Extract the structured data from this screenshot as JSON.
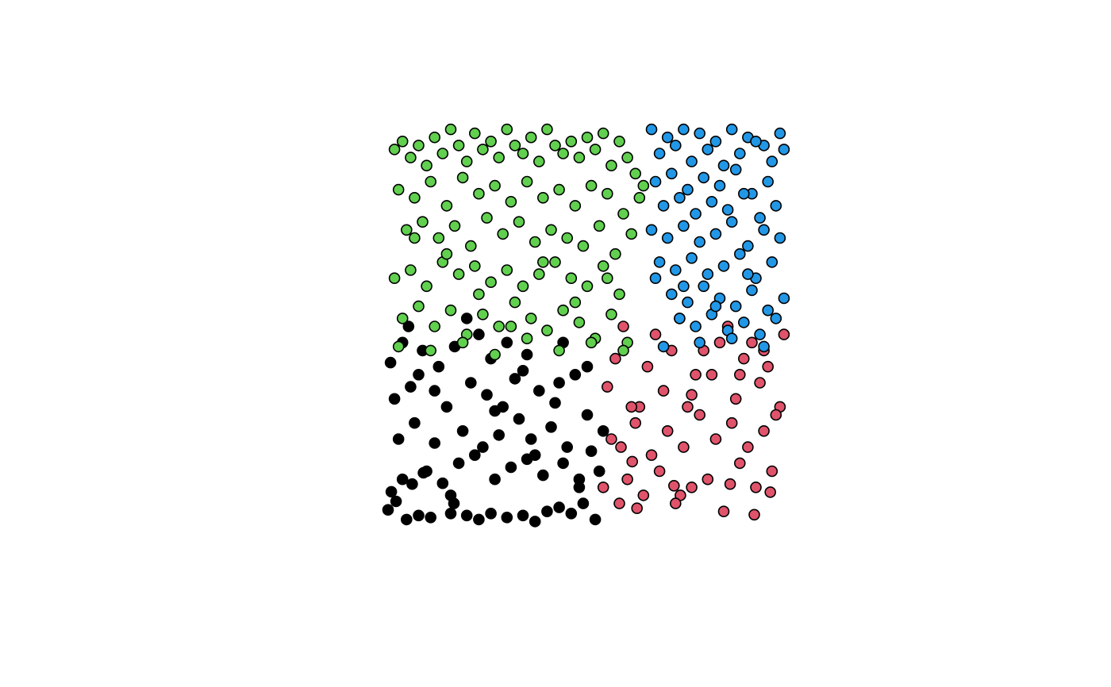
{
  "chart_data": {
    "type": "scatter",
    "xlim": [
      0,
      1
    ],
    "ylim": [
      0,
      1
    ],
    "grid": false,
    "axes_visible": false,
    "point_stroke": "#000000",
    "series": [
      {
        "color": "#000000",
        "x": [
          0.004,
          0.012,
          0.024,
          0.064,
          0.092,
          0.168,
          0.05,
          0.08,
          0.11,
          0.16,
          0.2,
          0.23,
          0.26,
          0.3,
          0.34,
          0.37,
          0.4,
          0.43,
          0.46,
          0.49,
          0.52,
          0.04,
          0.1,
          0.14,
          0.18,
          0.22,
          0.27,
          0.31,
          0.35,
          0.39,
          0.44,
          0.48,
          0.51,
          0.53,
          0.03,
          0.07,
          0.12,
          0.19,
          0.24,
          0.28,
          0.33,
          0.36,
          0.41,
          0.45,
          0.5,
          0.54,
          0.02,
          0.06,
          0.15,
          0.21,
          0.25,
          0.29,
          0.32,
          0.38,
          0.42,
          0.47,
          0.01,
          0.09,
          0.13,
          0.17,
          0.26,
          0.35,
          0.44,
          0.5,
          0.055,
          0.23,
          0.34,
          0.43,
          0.3,
          0.2,
          0.08,
          0.27,
          0.37,
          0.48,
          0.16,
          0.04,
          0.12
        ],
        "y": [
          0.044,
          0.089,
          0.065,
          0.108,
          0.136,
          0.06,
          0.02,
          0.03,
          0.025,
          0.035,
          0.03,
          0.02,
          0.035,
          0.025,
          0.03,
          0.015,
          0.04,
          0.05,
          0.035,
          0.06,
          0.02,
          0.12,
          0.14,
          0.11,
          0.16,
          0.18,
          0.12,
          0.15,
          0.17,
          0.13,
          0.16,
          0.1,
          0.19,
          0.14,
          0.22,
          0.26,
          0.21,
          0.24,
          0.2,
          0.23,
          0.27,
          0.22,
          0.25,
          0.2,
          0.28,
          0.24,
          0.32,
          0.35,
          0.3,
          0.36,
          0.33,
          0.3,
          0.37,
          0.34,
          0.31,
          0.38,
          0.41,
          0.44,
          0.4,
          0.45,
          0.42,
          0.43,
          0.46,
          0.4,
          0.5,
          0.48,
          0.39,
          0.36,
          0.46,
          0.52,
          0.38,
          0.29,
          0.18,
          0.12,
          0.08,
          0.46,
          0.34
        ]
      },
      {
        "color": "#DF536B",
        "x": [
          0.584,
          0.612,
          0.716,
          0.732,
          0.856,
          0.916,
          0.956,
          0.624,
          0.54,
          0.58,
          0.6,
          0.64,
          0.68,
          0.72,
          0.76,
          0.8,
          0.84,
          0.88,
          0.92,
          0.96,
          0.56,
          0.62,
          0.66,
          0.7,
          0.74,
          0.78,
          0.82,
          0.86,
          0.9,
          0.94,
          0.98,
          0.55,
          0.63,
          0.69,
          0.75,
          0.81,
          0.87,
          0.93,
          0.97,
          0.57,
          0.65,
          0.71,
          0.77,
          0.83,
          0.89,
          0.95,
          0.59,
          0.67,
          0.73,
          0.79,
          0.85,
          0.91,
          0.99,
          0.61,
          0.76,
          0.88,
          0.94
        ],
        "y": [
          0.2,
          0.164,
          0.104,
          0.08,
          0.108,
          0.032,
          0.088,
          0.048,
          0.1,
          0.06,
          0.12,
          0.08,
          0.14,
          0.06,
          0.1,
          0.12,
          0.04,
          0.16,
          0.1,
          0.14,
          0.22,
          0.26,
          0.18,
          0.24,
          0.2,
          0.28,
          0.22,
          0.26,
          0.2,
          0.24,
          0.3,
          0.35,
          0.3,
          0.34,
          0.3,
          0.38,
          0.32,
          0.36,
          0.28,
          0.42,
          0.4,
          0.44,
          0.38,
          0.46,
          0.42,
          0.4,
          0.5,
          0.48,
          0.52,
          0.44,
          0.5,
          0.46,
          0.48,
          0.3,
          0.33,
          0.38,
          0.44
        ]
      },
      {
        "color": "#61D04F",
        "x": [
          0.02,
          0.04,
          0.06,
          0.08,
          0.1,
          0.12,
          0.14,
          0.16,
          0.18,
          0.2,
          0.22,
          0.24,
          0.26,
          0.28,
          0.3,
          0.32,
          0.34,
          0.36,
          0.38,
          0.4,
          0.42,
          0.44,
          0.46,
          0.48,
          0.5,
          0.52,
          0.54,
          0.56,
          0.58,
          0.6,
          0.62,
          0.64,
          0.03,
          0.07,
          0.11,
          0.15,
          0.19,
          0.23,
          0.27,
          0.31,
          0.35,
          0.39,
          0.43,
          0.47,
          0.51,
          0.55,
          0.59,
          0.63,
          0.05,
          0.09,
          0.13,
          0.17,
          0.21,
          0.25,
          0.29,
          0.33,
          0.37,
          0.41,
          0.45,
          0.49,
          0.53,
          0.57,
          0.61,
          0.02,
          0.06,
          0.1,
          0.14,
          0.18,
          0.22,
          0.26,
          0.3,
          0.34,
          0.38,
          0.42,
          0.46,
          0.5,
          0.54,
          0.58,
          0.04,
          0.08,
          0.12,
          0.16,
          0.2,
          0.24,
          0.28,
          0.32,
          0.36,
          0.4,
          0.44,
          0.48,
          0.52,
          0.56,
          0.6,
          0.03,
          0.11,
          0.19,
          0.27,
          0.35,
          0.43,
          0.51,
          0.59,
          0.07,
          0.15,
          0.23,
          0.31,
          0.39,
          0.47,
          0.55
        ],
        "y": [
          0.94,
          0.96,
          0.92,
          0.95,
          0.9,
          0.97,
          0.93,
          0.99,
          0.95,
          0.91,
          0.98,
          0.94,
          0.96,
          0.92,
          0.99,
          0.95,
          0.93,
          0.97,
          0.91,
          0.99,
          0.95,
          0.93,
          0.96,
          0.92,
          0.97,
          0.94,
          0.98,
          0.9,
          0.96,
          0.92,
          0.88,
          0.85,
          0.84,
          0.82,
          0.86,
          0.8,
          0.87,
          0.83,
          0.85,
          0.81,
          0.86,
          0.82,
          0.84,
          0.8,
          0.85,
          0.83,
          0.78,
          0.82,
          0.74,
          0.76,
          0.72,
          0.75,
          0.7,
          0.77,
          0.73,
          0.76,
          0.71,
          0.74,
          0.72,
          0.7,
          0.75,
          0.68,
          0.73,
          0.62,
          0.64,
          0.6,
          0.66,
          0.63,
          0.65,
          0.61,
          0.64,
          0.6,
          0.63,
          0.66,
          0.62,
          0.6,
          0.65,
          0.58,
          0.52,
          0.55,
          0.5,
          0.54,
          0.48,
          0.53,
          0.5,
          0.56,
          0.52,
          0.49,
          0.54,
          0.51,
          0.47,
          0.53,
          0.46,
          0.45,
          0.44,
          0.46,
          0.43,
          0.47,
          0.44,
          0.46,
          0.44,
          0.72,
          0.68,
          0.58,
          0.5,
          0.66,
          0.56,
          0.62
        ]
      },
      {
        "color": "#2297E6",
        "x": [
          0.66,
          0.7,
          0.74,
          0.78,
          0.82,
          0.86,
          0.9,
          0.94,
          0.98,
          0.68,
          0.72,
          0.76,
          0.8,
          0.84,
          0.88,
          0.92,
          0.96,
          0.99,
          0.67,
          0.71,
          0.75,
          0.79,
          0.83,
          0.87,
          0.91,
          0.95,
          0.69,
          0.73,
          0.77,
          0.81,
          0.85,
          0.89,
          0.93,
          0.97,
          0.66,
          0.7,
          0.74,
          0.78,
          0.82,
          0.86,
          0.9,
          0.94,
          0.98,
          0.68,
          0.72,
          0.76,
          0.8,
          0.84,
          0.88,
          0.92,
          0.96,
          0.71,
          0.75,
          0.79,
          0.83,
          0.87,
          0.91,
          0.95,
          0.99,
          0.67,
          0.73,
          0.77,
          0.81,
          0.85,
          0.89,
          0.93,
          0.97,
          0.69,
          0.78,
          0.86,
          0.94,
          0.74,
          0.82,
          0.9
        ],
        "y": [
          0.99,
          0.97,
          0.99,
          0.98,
          0.96,
          0.99,
          0.97,
          0.95,
          0.98,
          0.93,
          0.95,
          0.91,
          0.94,
          0.9,
          0.93,
          0.96,
          0.91,
          0.94,
          0.86,
          0.88,
          0.84,
          0.87,
          0.85,
          0.89,
          0.83,
          0.86,
          0.8,
          0.82,
          0.78,
          0.81,
          0.79,
          0.83,
          0.77,
          0.8,
          0.74,
          0.72,
          0.75,
          0.71,
          0.73,
          0.76,
          0.7,
          0.74,
          0.72,
          0.66,
          0.64,
          0.67,
          0.63,
          0.65,
          0.68,
          0.62,
          0.66,
          0.58,
          0.56,
          0.6,
          0.57,
          0.55,
          0.59,
          0.54,
          0.57,
          0.62,
          0.52,
          0.5,
          0.53,
          0.49,
          0.51,
          0.48,
          0.52,
          0.45,
          0.46,
          0.47,
          0.45,
          0.6,
          0.55,
          0.63
        ]
      }
    ]
  }
}
